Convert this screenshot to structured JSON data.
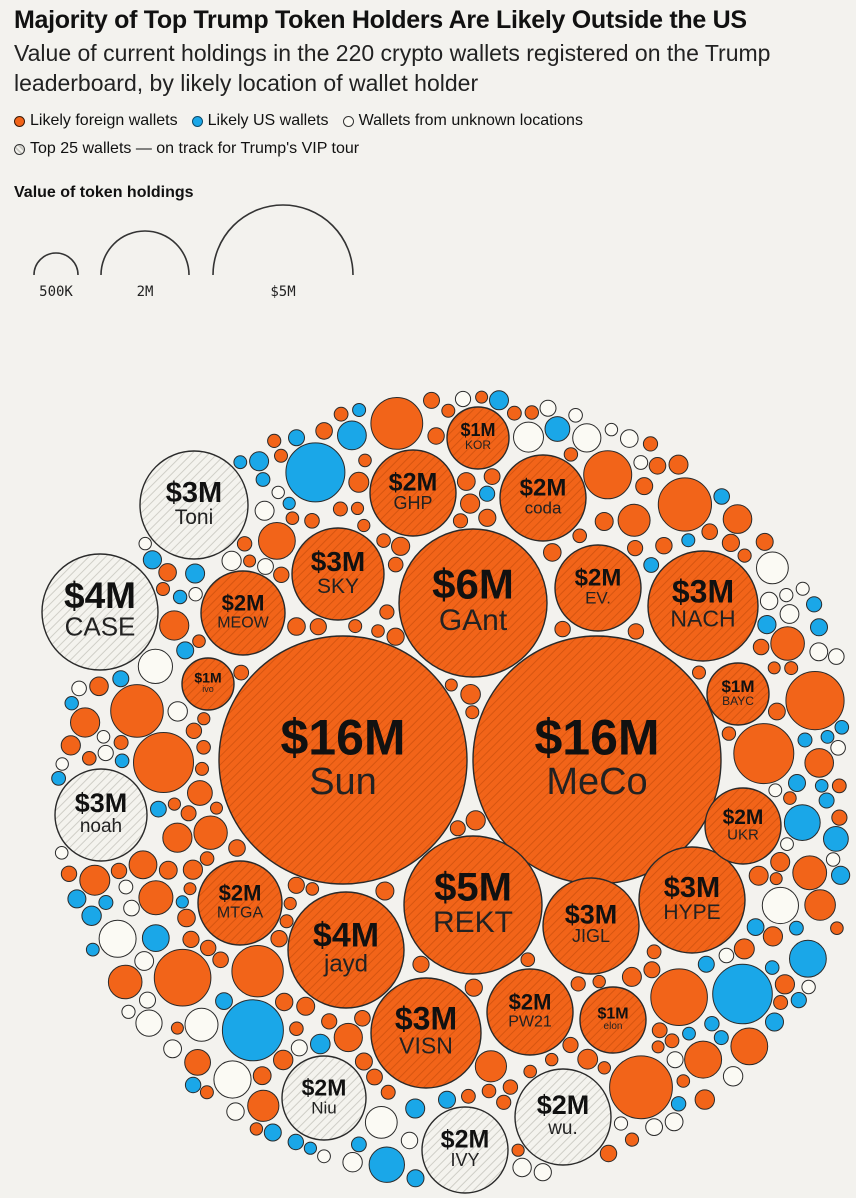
{
  "title": "Majority of Top Trump Token Holders Are Likely Outside the US",
  "subtitle": "Value of current holdings in the 220 crypto wallets registered on the Trump leaderboard, by likely location of wallet holder",
  "legend": {
    "foreign": "Likely foreign wallets",
    "us": "Likely US wallets",
    "unknown": "Wallets from unknown locations",
    "top25": "Top 25 wallets — on track for Trump's VIP tour"
  },
  "size_legend": {
    "title": "Value of token holdings",
    "labels": [
      "500K",
      "2M",
      "$5M"
    ]
  },
  "colors": {
    "foreign": "#f26419",
    "us": "#1aa7e8",
    "unknown": "#fbfaf4",
    "background": "#f3f2ee"
  },
  "chart_data": {
    "type": "bubble",
    "title": "Majority of Top Trump Token Holders Are Likely Outside the US",
    "total_wallets": 220,
    "size_scale_values": [
      500000,
      2000000,
      5000000
    ],
    "size_scale_labels": [
      "500K",
      "2M",
      "$5M"
    ],
    "labeled_wallets": [
      {
        "name": "Sun",
        "label": "$16M",
        "value_m": 16,
        "location": "foreign",
        "top25": true
      },
      {
        "name": "MeCo",
        "label": "$16M",
        "value_m": 16,
        "location": "foreign",
        "top25": true
      },
      {
        "name": "GAnt",
        "label": "$6M",
        "value_m": 6,
        "location": "foreign",
        "top25": true
      },
      {
        "name": "REKT",
        "label": "$5M",
        "value_m": 5,
        "location": "foreign",
        "top25": true
      },
      {
        "name": "CASE",
        "label": "$4M",
        "value_m": 4,
        "location": "unknown",
        "top25": true
      },
      {
        "name": "jayd",
        "label": "$4M",
        "value_m": 4,
        "location": "foreign",
        "top25": true
      },
      {
        "name": "Toni",
        "label": "$3M",
        "value_m": 3,
        "location": "unknown",
        "top25": true
      },
      {
        "name": "SKY",
        "label": "$3M",
        "value_m": 3,
        "location": "foreign",
        "top25": true
      },
      {
        "name": "NACH",
        "label": "$3M",
        "value_m": 3,
        "location": "foreign",
        "top25": true
      },
      {
        "name": "noah",
        "label": "$3M",
        "value_m": 3,
        "location": "unknown",
        "top25": true
      },
      {
        "name": "HYPE",
        "label": "$3M",
        "value_m": 3,
        "location": "foreign",
        "top25": true
      },
      {
        "name": "JIGL",
        "label": "$3M",
        "value_m": 3,
        "location": "foreign",
        "top25": true
      },
      {
        "name": "VISN",
        "label": "$3M",
        "value_m": 3,
        "location": "foreign",
        "top25": true
      },
      {
        "name": "GHP",
        "label": "$2M",
        "value_m": 2,
        "location": "foreign",
        "top25": true
      },
      {
        "name": "coda",
        "label": "$2M",
        "value_m": 2,
        "location": "foreign",
        "top25": true
      },
      {
        "name": "EV.",
        "label": "$2M",
        "value_m": 2,
        "location": "foreign",
        "top25": true
      },
      {
        "name": "MEOW",
        "label": "$2M",
        "value_m": 2,
        "location": "foreign",
        "top25": true
      },
      {
        "name": "UKR",
        "label": "$2M",
        "value_m": 2,
        "location": "foreign",
        "top25": true
      },
      {
        "name": "MTGA",
        "label": "$2M",
        "value_m": 2,
        "location": "foreign",
        "top25": true
      },
      {
        "name": "PW21",
        "label": "$2M",
        "value_m": 2,
        "location": "foreign",
        "top25": true
      },
      {
        "name": "Niu",
        "label": "$2M",
        "value_m": 2,
        "location": "unknown",
        "top25": true
      },
      {
        "name": "wu.",
        "label": "$2M",
        "value_m": 2,
        "location": "unknown",
        "top25": true
      },
      {
        "name": "IVY",
        "label": "$2M",
        "value_m": 2,
        "location": "unknown",
        "top25": true
      },
      {
        "name": "KOR",
        "label": "$1M",
        "value_m": 1,
        "location": "foreign",
        "top25": true
      },
      {
        "name": "ivo",
        "label": "$1M",
        "value_m": 1,
        "location": "foreign",
        "top25": true
      },
      {
        "name": "BAYC",
        "label": "$1M",
        "value_m": 1,
        "location": "foreign",
        "top25": true
      },
      {
        "name": "elon",
        "label": "$1M",
        "value_m": 1,
        "location": "foreign",
        "top25": true
      }
    ]
  }
}
